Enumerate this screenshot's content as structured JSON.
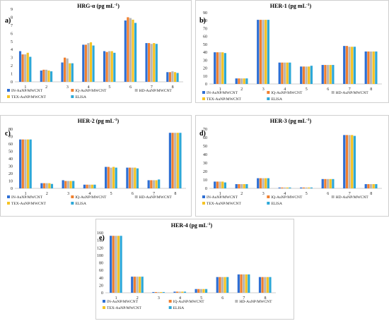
{
  "colors": [
    "#2e6fd4",
    "#f07f2e",
    "#b7b7b7",
    "#f5c324",
    "#2da8d8"
  ],
  "chart_data": [
    {
      "type": "bar",
      "letter": "a)",
      "title": "HRG-α (pg mL⁻¹)",
      "title_base": "HRG-α (pg mL",
      "title_sup": "-1",
      "title_end": ")",
      "categories": [
        "1",
        "2",
        "3",
        "4",
        "5",
        "6",
        "7",
        "8"
      ],
      "ylim": [
        0,
        9
      ],
      "yticks": [
        0,
        1,
        2,
        3,
        4,
        5,
        6,
        7,
        8,
        9
      ],
      "series": [
        {
          "name": "IN-AuNP/MWCNT",
          "values": [
            3.8,
            1.4,
            2.4,
            4.6,
            3.8,
            7.6,
            4.8,
            1.2
          ]
        },
        {
          "name": "IQ-AuNP/MWCNT",
          "values": [
            3.4,
            1.5,
            3.0,
            4.6,
            3.7,
            8.0,
            4.8,
            1.2
          ]
        },
        {
          "name": "HD-AuNP/MWCNT",
          "values": [
            3.4,
            1.5,
            2.9,
            4.8,
            3.8,
            7.9,
            4.7,
            1.3
          ]
        },
        {
          "name": "TEX-AuNP/MWCNT",
          "values": [
            3.6,
            1.4,
            2.3,
            4.9,
            3.8,
            7.7,
            4.8,
            1.2
          ]
        },
        {
          "name": "ELISA",
          "values": [
            3.1,
            1.3,
            2.3,
            4.5,
            3.6,
            7.3,
            4.7,
            1.1
          ]
        }
      ]
    },
    {
      "type": "bar",
      "letter": "b)",
      "title": "HER-1 (pg mL⁻¹)",
      "title_base": "HER-1 (pg mL",
      "title_sup": "-1",
      "title_end": ")",
      "categories": [
        "1",
        "2",
        "3",
        "4",
        "5",
        "6",
        "7",
        "8"
      ],
      "ylim": [
        0,
        90
      ],
      "yticks": [
        0,
        10,
        20,
        30,
        40,
        50,
        60,
        70,
        80,
        90
      ],
      "series": [
        {
          "name": "IN-AuNP/MWCNT",
          "values": [
            40,
            7,
            81,
            27,
            22,
            24,
            48,
            41
          ]
        },
        {
          "name": "IQ-AuNP/MWCNT",
          "values": [
            40,
            7,
            81,
            27,
            22,
            24,
            48,
            41
          ]
        },
        {
          "name": "HD-AuNP/MWCNT",
          "values": [
            40,
            7,
            81,
            27,
            22,
            24,
            47,
            41
          ]
        },
        {
          "name": "TEX-AuNP/MWCNT",
          "values": [
            40,
            7,
            81,
            27,
            22,
            24,
            47,
            41
          ]
        },
        {
          "name": "ELISA",
          "values": [
            39,
            7,
            81,
            27,
            23,
            24,
            47,
            41
          ]
        }
      ]
    },
    {
      "type": "bar",
      "letter": "c)",
      "title": "HER-2 (pg mL⁻¹)",
      "title_base": "HER-2 (pg mL",
      "title_sup": "-1",
      "title_end": ")",
      "categories": [
        "1",
        "2",
        "3",
        "4",
        "5",
        "6",
        "7",
        "8"
      ],
      "ylim": [
        0,
        80
      ],
      "yticks": [
        0,
        10,
        20,
        30,
        40,
        50,
        60,
        70,
        80
      ],
      "series": [
        {
          "name": "IN-AuNP/MWCNT",
          "values": [
            66,
            7,
            11,
            5,
            29,
            28,
            11,
            75
          ]
        },
        {
          "name": "IQ-AuNP/MWCNT",
          "values": [
            66,
            7,
            10,
            5,
            29,
            28,
            11,
            75
          ]
        },
        {
          "name": "HD-AuNP/MWCNT",
          "values": [
            66,
            7,
            10,
            5,
            28,
            28,
            11,
            75
          ]
        },
        {
          "name": "TEX-AuNP/MWCNT",
          "values": [
            66,
            7,
            10,
            5,
            29,
            28,
            11,
            75
          ]
        },
        {
          "name": "ELISA",
          "values": [
            66,
            6,
            10,
            5,
            28,
            27,
            12,
            75
          ]
        }
      ]
    },
    {
      "type": "bar",
      "letter": "d)",
      "title": "HER-3 (pg mL⁻¹)",
      "title_base": "HER-3 (pg mL",
      "title_sup": "-1",
      "title_end": ")",
      "categories": [
        "1",
        "2",
        "3",
        "4",
        "5",
        "6",
        "7",
        "8"
      ],
      "ylim": [
        0,
        70
      ],
      "yticks": [
        0,
        10,
        20,
        30,
        40,
        50,
        60,
        70
      ],
      "series": [
        {
          "name": "IN-AuNP/MWCNT",
          "values": [
            8,
            5,
            12,
            1,
            1,
            11,
            63,
            5
          ]
        },
        {
          "name": "IQ-AuNP/MWCNT",
          "values": [
            8,
            5,
            12,
            1,
            1,
            11,
            63,
            5
          ]
        },
        {
          "name": "HD-AuNP/MWCNT",
          "values": [
            8,
            5,
            12,
            1,
            1,
            11,
            63,
            5
          ]
        },
        {
          "name": "TEX-AuNP/MWCNT",
          "values": [
            8,
            5,
            12,
            1,
            1,
            11,
            63,
            5
          ]
        },
        {
          "name": "ELISA",
          "values": [
            7,
            5,
            12,
            1,
            1,
            11,
            62,
            5
          ]
        }
      ]
    },
    {
      "type": "bar",
      "letter": "e)",
      "title": "HER-4 (pg mL⁻¹)",
      "title_base": "HER-4 (pg mL",
      "title_sup": "-1",
      "title_end": ")",
      "categories": [
        "1",
        "2",
        "3",
        "4",
        "5",
        "6",
        "7",
        "8"
      ],
      "ylim": [
        0,
        160
      ],
      "yticks": [
        0,
        20,
        40,
        60,
        80,
        100,
        120,
        140,
        160
      ],
      "series": [
        {
          "name": "IN-AuNP/MWCNT",
          "values": [
            152,
            43,
            2,
            3,
            10,
            42,
            49,
            42
          ]
        },
        {
          "name": "IQ-AuNP/MWCNT",
          "values": [
            152,
            43,
            2,
            3,
            10,
            42,
            49,
            42
          ]
        },
        {
          "name": "HD-AuNP/MWCNT",
          "values": [
            152,
            43,
            2,
            3,
            10,
            42,
            49,
            42
          ]
        },
        {
          "name": "TEX-AuNP/MWCNT",
          "values": [
            152,
            43,
            2,
            3,
            10,
            42,
            49,
            42
          ]
        },
        {
          "name": "ELISA",
          "values": [
            152,
            43,
            2,
            3,
            10,
            42,
            49,
            42
          ]
        }
      ]
    }
  ]
}
